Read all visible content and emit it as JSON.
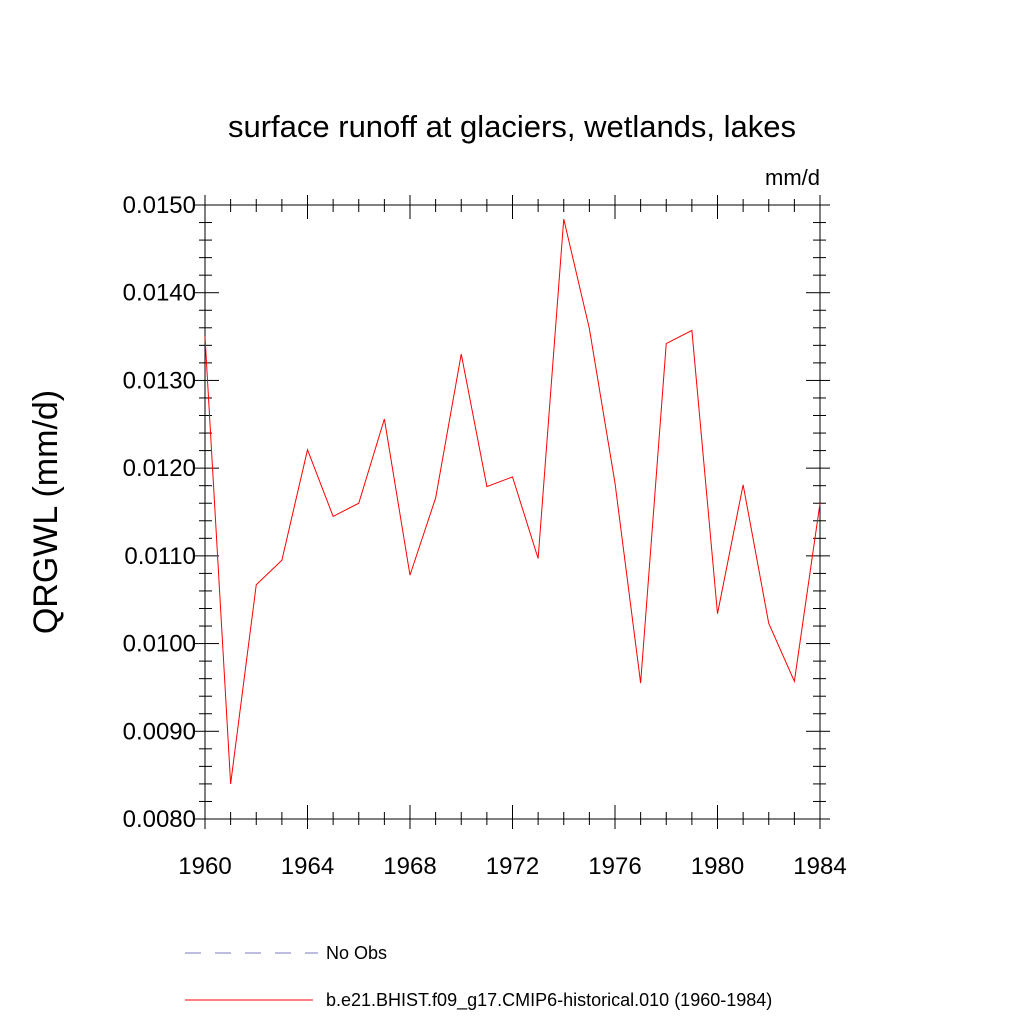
{
  "chart_data": {
    "type": "line",
    "title": "surface runoff at glaciers, wetlands, lakes",
    "units_label": "mm/d",
    "ylabel": "QRGWL  (mm/d)",
    "xlabel": "",
    "xlim": [
      1960,
      1984
    ],
    "ylim": [
      0.008,
      0.015
    ],
    "x_ticks": [
      "1960",
      "1964",
      "1968",
      "1972",
      "1976",
      "1980",
      "1984"
    ],
    "y_ticks": [
      "0.0080",
      "0.0090",
      "0.0100",
      "0.0110",
      "0.0120",
      "0.0130",
      "0.0140",
      "0.0150"
    ],
    "x": [
      1960,
      1961,
      1962,
      1963,
      1964,
      1965,
      1966,
      1967,
      1968,
      1969,
      1970,
      1971,
      1972,
      1973,
      1974,
      1975,
      1976,
      1977,
      1978,
      1979,
      1980,
      1981,
      1982,
      1983,
      1984
    ],
    "series": [
      {
        "name": "b.e21.BHIST.f09_g17.CMIP6-historical.010 (1960-1984)",
        "color": "#ff0000",
        "values": [
          0.0135,
          0.0084,
          0.01067,
          0.01095,
          0.01221,
          0.01145,
          0.0116,
          0.01256,
          0.01078,
          0.01166,
          0.0133,
          0.01179,
          0.0119,
          0.01097,
          0.01484,
          0.01359,
          0.01183,
          0.00955,
          0.01342,
          0.01357,
          0.01034,
          0.01181,
          0.01023,
          0.00957,
          0.0116
        ]
      }
    ],
    "legend": [
      {
        "label": "No Obs",
        "color": "#7b7bbf",
        "style": "dashed"
      },
      {
        "label": "b.e21.BHIST.f09_g17.CMIP6-historical.010 (1960-1984)",
        "color": "#ff0000",
        "style": "solid"
      }
    ],
    "legend_placement": "bottom",
    "grid": false
  }
}
